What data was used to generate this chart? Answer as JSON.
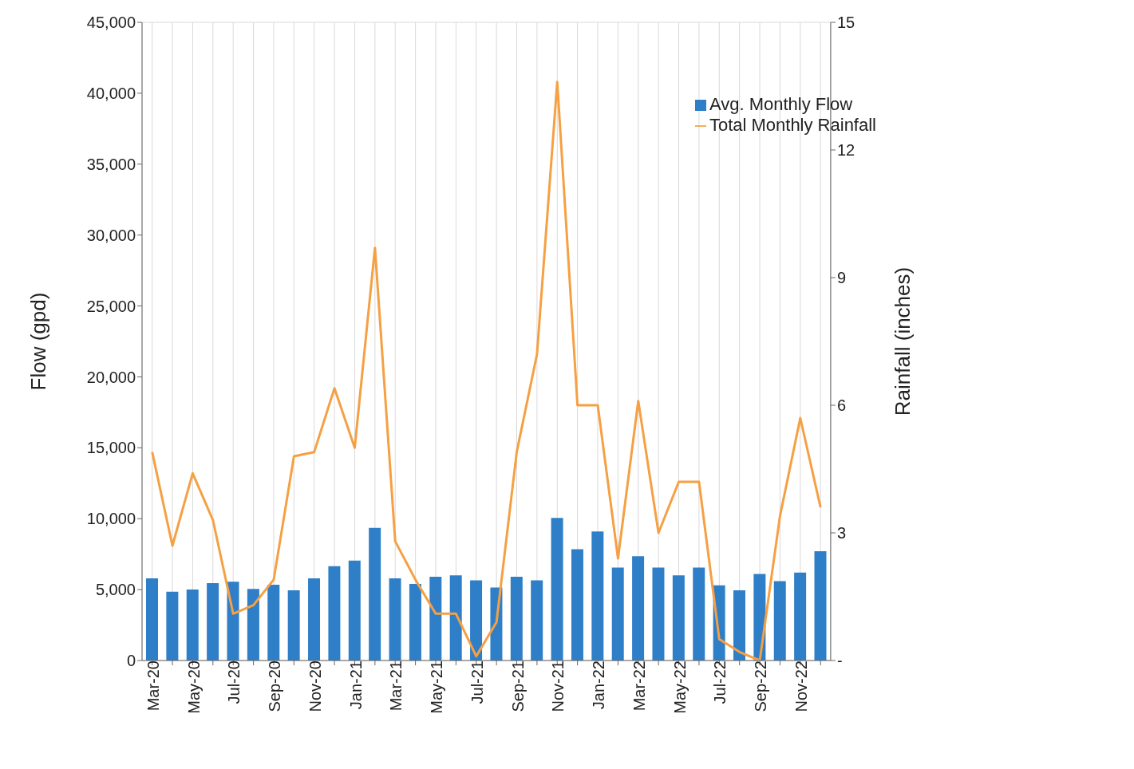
{
  "chart_data": {
    "type": "bar",
    "ylabel": "Flow (gpd)",
    "y2label": "Rainfall (inches)",
    "categories": [
      "Mar-20",
      null,
      "May-20",
      null,
      "Jul-20",
      null,
      "Sep-20",
      null,
      "Nov-20",
      null,
      "Jan-21",
      null,
      "Mar-21",
      null,
      "May-21",
      null,
      "Jul-21",
      null,
      "Sep-21",
      null,
      "Nov-21",
      null,
      "Jan-22",
      null,
      "Mar-22",
      null,
      "May-22",
      null,
      "Jul-22",
      null,
      "Sep-22",
      null,
      "Nov-22",
      null
    ],
    "series": [
      {
        "name": "Avg. Monthly Flow",
        "color": "#2e7fc8",
        "values": [
          5800,
          4850,
          5000,
          5450,
          5550,
          5050,
          5350,
          4950,
          5800,
          6650,
          7050,
          9350,
          5800,
          5400,
          5900,
          6000,
          5650,
          5150,
          5900,
          5650,
          10050,
          7850,
          9100,
          6550,
          7350,
          6550,
          6000,
          6550,
          5300,
          4950,
          6100,
          5600,
          6200,
          7700
        ]
      },
      {
        "name": "Total Monthly Rainfall",
        "type": "line",
        "axis": "y2",
        "color": "#f5a043",
        "values": [
          4.9,
          2.7,
          4.4,
          3.3,
          1.1,
          1.3,
          1.9,
          4.8,
          4.9,
          6.4,
          5.0,
          9.7,
          2.8,
          1.9,
          1.1,
          1.1,
          0.1,
          0.9,
          4.9,
          7.2,
          13.6,
          6.0,
          6.0,
          2.4,
          6.1,
          3.0,
          4.2,
          4.2,
          0.5,
          0.2,
          0.0,
          3.4,
          5.7,
          3.6
        ]
      }
    ],
    "ylim": [
      0,
      45000
    ],
    "yticks": [
      0,
      {
        "value": 5000,
        "label": "5,000"
      },
      {
        "value": 10000,
        "label": "10,000"
      },
      {
        "value": 15000,
        "label": "15,000"
      },
      {
        "value": 20000,
        "label": "20,000"
      },
      {
        "value": 25000,
        "label": "25,000"
      },
      {
        "value": 30000,
        "label": "30,000"
      },
      {
        "value": 35000,
        "label": "35,000"
      },
      {
        "value": 40000,
        "label": "40,000"
      },
      {
        "value": 45000,
        "label": "45,000"
      }
    ],
    "y2lim": [
      0,
      15
    ],
    "y2ticks": [
      {
        "value": 0,
        "label": "-"
      },
      3,
      6,
      9,
      12,
      15
    ],
    "grid": true,
    "legend": "top right",
    "marker": "none",
    "line_style": "solid"
  }
}
